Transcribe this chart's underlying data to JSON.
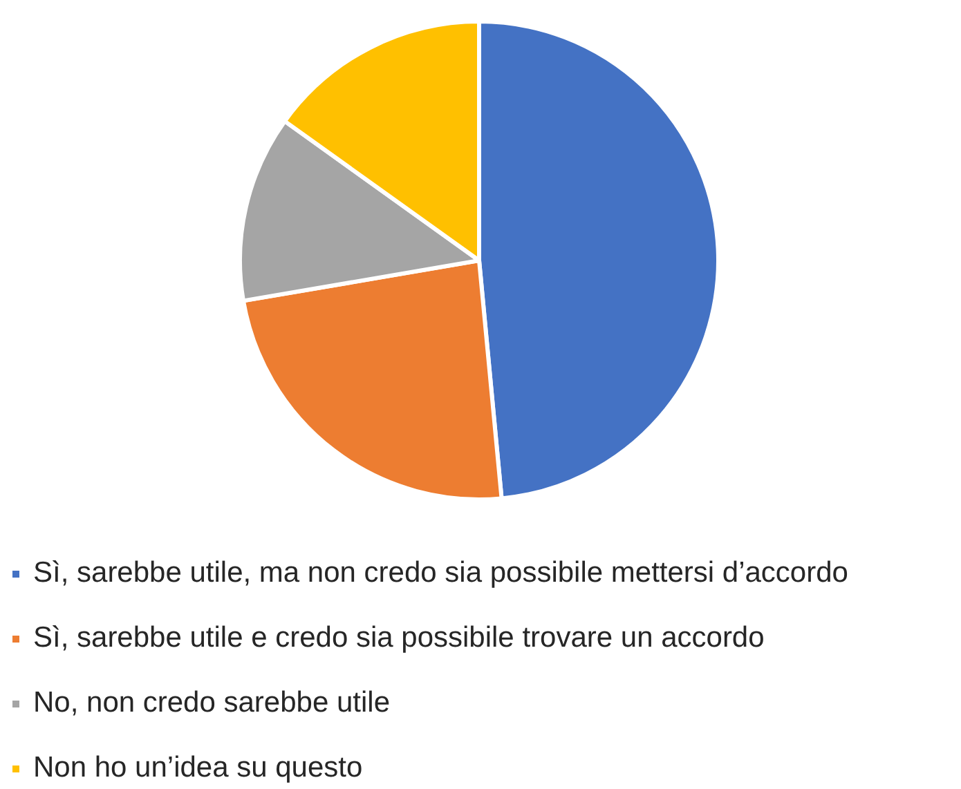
{
  "chart_data": {
    "type": "pie",
    "categories": [
      "Sì, sarebbe utile, ma non credo sia possibile mettersi d’accordo",
      "Sì, sarebbe utile e credo sia possibile trovare un accordo",
      "No, non credo sarebbe utile",
      "Non ho un’idea su questo"
    ],
    "values": [
      48.5,
      23.8,
      12.6,
      15.1
    ],
    "colors": [
      "#4472c4",
      "#ed7d31",
      "#a5a5a5",
      "#ffc000"
    ],
    "legend": "bottom"
  }
}
